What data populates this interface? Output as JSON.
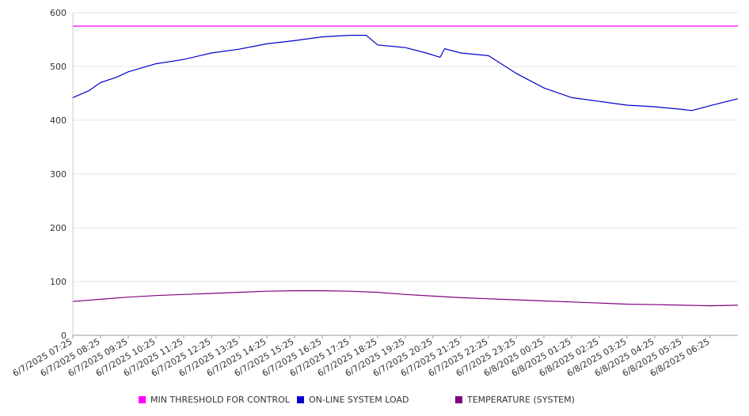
{
  "chart_data": {
    "type": "line",
    "title": "",
    "xlabel": "",
    "ylabel": "",
    "ylim": [
      0,
      600
    ],
    "yticks": [
      0,
      100,
      200,
      300,
      400,
      500,
      600
    ],
    "x_tick_labels": [
      "6/7/2025 07:25",
      "6/7/2025 08:25",
      "6/7/2025 09:25",
      "6/7/2025 10:25",
      "6/7/2025 11:25",
      "6/7/2025 12:25",
      "6/7/2025 13:25",
      "6/7/2025 14:25",
      "6/7/2025 15:25",
      "6/7/2025 16:25",
      "6/7/2025 17:25",
      "6/7/2025 18:25",
      "6/7/2025 19:25",
      "6/7/2025 20:25",
      "6/7/2025 21:25",
      "6/7/2025 22:25",
      "6/7/2025 23:25",
      "6/8/2025 00:25",
      "6/8/2025 01:25",
      "6/8/2025 02:25",
      "6/8/2025 03:25",
      "6/8/2025 04:25",
      "6/8/2025 05:25",
      "6/8/2025 06:25"
    ],
    "x_range": [
      "6/7/2025 07:25",
      "6/8/2025 07:25"
    ],
    "grid": "horizontal",
    "legend_position": "bottom",
    "series": [
      {
        "name": "MIN THRESHOLD FOR CONTROL",
        "color": "#ff00ff",
        "x": [
          "6/7/2025 07:25",
          "6/8/2025 07:25"
        ],
        "y": [
          575,
          575
        ]
      },
      {
        "name": "ON-LINE SYSTEM LOAD",
        "color": "#0000cc",
        "x": [
          "6/7/2025 07:25",
          "6/7/2025 08:00",
          "6/7/2025 08:25",
          "6/7/2025 09:00",
          "6/7/2025 09:25",
          "6/7/2025 10:25",
          "6/7/2025 11:25",
          "6/7/2025 12:25",
          "6/7/2025 13:25",
          "6/7/2025 14:25",
          "6/7/2025 15:25",
          "6/7/2025 16:25",
          "6/7/2025 17:25",
          "6/7/2025 18:00",
          "6/7/2025 18:25",
          "6/7/2025 19:25",
          "6/7/2025 20:10",
          "6/7/2025 20:40",
          "6/7/2025 20:50",
          "6/7/2025 21:25",
          "6/7/2025 22:25",
          "6/7/2025 23:25",
          "6/8/2025 00:25",
          "6/8/2025 01:25",
          "6/8/2025 02:25",
          "6/8/2025 03:25",
          "6/8/2025 04:25",
          "6/8/2025 05:25",
          "6/8/2025 05:45",
          "6/8/2025 06:25",
          "6/8/2025 07:25"
        ],
        "y": [
          442,
          455,
          470,
          480,
          490,
          505,
          513,
          525,
          532,
          542,
          548,
          555,
          558,
          558,
          540,
          535,
          525,
          517,
          533,
          525,
          520,
          487,
          460,
          442,
          435,
          428,
          425,
          420,
          418,
          427,
          440
        ]
      },
      {
        "name": "TEMPERATURE (SYSTEM)",
        "color": "#800080",
        "x": [
          "6/7/2025 07:25",
          "6/7/2025 08:25",
          "6/7/2025 09:25",
          "6/7/2025 10:25",
          "6/7/2025 11:25",
          "6/7/2025 12:25",
          "6/7/2025 13:25",
          "6/7/2025 14:25",
          "6/7/2025 15:25",
          "6/7/2025 16:25",
          "6/7/2025 17:25",
          "6/7/2025 18:25",
          "6/7/2025 19:25",
          "6/7/2025 20:25",
          "6/7/2025 21:25",
          "6/7/2025 22:25",
          "6/7/2025 23:25",
          "6/8/2025 00:25",
          "6/8/2025 01:25",
          "6/8/2025 02:25",
          "6/8/2025 03:25",
          "6/8/2025 04:25",
          "6/8/2025 05:25",
          "6/8/2025 06:25",
          "6/8/2025 07:25"
        ],
        "y": [
          63,
          67,
          71,
          74,
          76,
          78,
          80,
          82,
          83,
          83,
          82,
          80,
          76,
          73,
          70,
          68,
          66,
          64,
          62,
          60,
          58,
          57,
          56,
          55,
          56
        ]
      }
    ]
  },
  "legend": {
    "items": [
      {
        "label": "MIN THRESHOLD FOR CONTROL",
        "color": "#ff00ff"
      },
      {
        "label": "ON-LINE SYSTEM LOAD",
        "color": "#0000cc"
      },
      {
        "label": "TEMPERATURE (SYSTEM)",
        "color": "#800080"
      }
    ]
  }
}
